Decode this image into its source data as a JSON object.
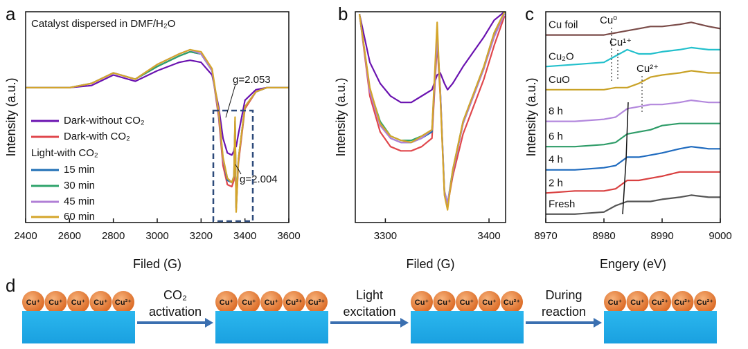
{
  "chart_data": [
    {
      "type": "line",
      "panel_label": "a",
      "x_label": "Filed (G)",
      "y_label": "Intensity (a.u.)",
      "x": [
        2400,
        2500,
        2600,
        2700,
        2800,
        2900,
        3000,
        3100,
        3150,
        3200,
        3250,
        3280,
        3300,
        3320,
        3340,
        3350,
        3355,
        3360,
        3370,
        3400,
        3450,
        3500,
        3600
      ],
      "xlim": [
        2400,
        3600
      ],
      "xticks": [
        2400,
        2600,
        2800,
        3000,
        3200,
        3400,
        3600
      ],
      "ylim": [
        0,
        100
      ],
      "legend": "lower left",
      "legend_header": "Light-with CO₂",
      "annotations": [
        "Catalyst dispersed in DMF/H₂O",
        "g=2.053",
        "g=2.004"
      ],
      "series": [
        {
          "name": "Dark-without CO₂",
          "color": "#6a12b0",
          "values": [
            64,
            64,
            64,
            65,
            70,
            67,
            72,
            76,
            77,
            76,
            70,
            55,
            40,
            33,
            32,
            34,
            38,
            36,
            42,
            58,
            63,
            64,
            64
          ]
        },
        {
          "name": "Dark-with CO₂",
          "color": "#e0474c",
          "values": [
            64,
            64,
            64,
            66,
            71,
            68,
            74,
            79,
            81,
            80,
            72,
            50,
            27,
            18,
            17,
            20,
            46,
            6,
            28,
            54,
            62,
            64,
            64
          ]
        },
        {
          "name": "15 min",
          "color": "#1f6fb5",
          "values": [
            64,
            64,
            64,
            66,
            71,
            68,
            74,
            79,
            81,
            80,
            72,
            52,
            30,
            20,
            19,
            22,
            47,
            7,
            30,
            55,
            62,
            64,
            64
          ]
        },
        {
          "name": "30 min",
          "color": "#2ea36b",
          "values": [
            64,
            64,
            64,
            66,
            71,
            68,
            74,
            79,
            81,
            80,
            72,
            52,
            30,
            21,
            19,
            22,
            48,
            7,
            30,
            55,
            62,
            64,
            64
          ]
        },
        {
          "name": "45 min",
          "color": "#b07fd6",
          "values": [
            64,
            64,
            64,
            66,
            71,
            68,
            75,
            80,
            82,
            80,
            72,
            52,
            30,
            21,
            19,
            22,
            48,
            7,
            30,
            55,
            62,
            64,
            64
          ]
        },
        {
          "name": "60 min",
          "color": "#d4a52a",
          "values": [
            64,
            64,
            64,
            66,
            71,
            68,
            75,
            80,
            82,
            81,
            73,
            53,
            31,
            21,
            19,
            22,
            50,
            5,
            30,
            55,
            62,
            64,
            64
          ]
        }
      ]
    },
    {
      "type": "line",
      "panel_label": "b",
      "x_label": "Filed (G)",
      "y_label": "Intensity (a.u.)",
      "x": [
        3275,
        3285,
        3295,
        3305,
        3315,
        3325,
        3335,
        3345,
        3350,
        3353,
        3357,
        3360,
        3365,
        3375,
        3385,
        3395,
        3405,
        3415
      ],
      "xlim": [
        3271,
        3416
      ],
      "xticks": [
        3300,
        3400
      ],
      "ylim": [
        0,
        100
      ],
      "series": [
        {
          "name": "Dark-without CO₂",
          "color": "#6a12b0",
          "values": [
            99,
            76,
            66,
            60,
            57,
            57,
            60,
            63,
            70,
            71,
            66,
            63,
            66,
            74,
            81,
            88,
            96,
            100
          ]
        },
        {
          "name": "Dark-with CO₂",
          "color": "#e0474c",
          "values": [
            99,
            60,
            43,
            36,
            34,
            34,
            36,
            40,
            85,
            60,
            14,
            8,
            22,
            42,
            55,
            68,
            84,
            98
          ]
        },
        {
          "name": "15 min",
          "color": "#1f6fb5",
          "values": [
            99,
            63,
            47,
            40,
            38,
            38,
            40,
            43,
            89,
            63,
            14,
            8,
            24,
            47,
            60,
            73,
            89,
            100
          ]
        },
        {
          "name": "30 min",
          "color": "#2ea36b",
          "values": [
            99,
            63,
            48,
            41,
            39,
            39,
            41,
            44,
            88,
            62,
            15,
            9,
            25,
            48,
            61,
            74,
            90,
            100
          ]
        },
        {
          "name": "45 min",
          "color": "#b07fd6",
          "values": [
            99,
            62,
            46,
            40,
            38,
            38,
            40,
            44,
            88,
            63,
            15,
            9,
            24,
            47,
            60,
            73,
            88,
            99
          ]
        },
        {
          "name": "60 min",
          "color": "#d4a52a",
          "values": [
            99,
            64,
            47,
            41,
            39,
            38,
            41,
            44,
            95,
            60,
            13,
            6,
            25,
            48,
            61,
            74,
            90,
            100
          ]
        }
      ]
    },
    {
      "type": "line",
      "panel_label": "c",
      "x_label": "Engery (eV)",
      "y_label": "Intensity (a.u.)",
      "x": [
        8970,
        8975,
        8980,
        8982,
        8984,
        8986,
        8988,
        8990,
        8993,
        8995,
        8998,
        9000
      ],
      "xlim": [
        8970,
        9000
      ],
      "xticks": [
        8970,
        8980,
        8990,
        9000
      ],
      "ylim": [
        0,
        100
      ],
      "legend": "inline",
      "annotations": [
        "Cu⁰",
        "Cu¹⁺",
        "Cu²⁺"
      ],
      "series": [
        {
          "name": "Cu foil",
          "color": "#7a4b48",
          "values": [
            89,
            89,
            89,
            90,
            91,
            92,
            93,
            93,
            94,
            95,
            93,
            92
          ]
        },
        {
          "name": "Cu₂O",
          "color": "#23c0cc",
          "values": [
            74,
            75,
            76,
            79,
            82,
            80,
            80,
            81,
            82,
            83,
            82,
            82
          ]
        },
        {
          "name": "CuO",
          "color": "#c9a227",
          "values": [
            63,
            63,
            63,
            64,
            64,
            66,
            69,
            70,
            71,
            72,
            71,
            71
          ]
        },
        {
          "name": "8 h",
          "color": "#b388dd",
          "values": [
            48,
            48,
            49,
            50,
            54,
            55,
            56,
            56,
            57,
            58,
            57,
            57
          ]
        },
        {
          "name": "6 h",
          "color": "#2e9c68",
          "values": [
            36,
            36,
            37,
            38,
            42,
            43,
            44,
            46,
            47,
            47,
            47,
            47
          ]
        },
        {
          "name": "4 h",
          "color": "#1f6bbf",
          "values": [
            25,
            25,
            26,
            27,
            31,
            31,
            32,
            33,
            35,
            36,
            35,
            35
          ]
        },
        {
          "name": "2 h",
          "color": "#d94040",
          "values": [
            14,
            15,
            15,
            16,
            20,
            20,
            21,
            22,
            24,
            24,
            24,
            24
          ]
        },
        {
          "name": "Fresh",
          "color": "#555555",
          "values": [
            4,
            4,
            5,
            8,
            10,
            10,
            10,
            11,
            12,
            13,
            12,
            12
          ]
        }
      ]
    }
  ],
  "diagram": {
    "panel_label": "d",
    "states": [
      [
        "Cu⁺",
        "Cu⁺",
        "Cu⁺",
        "Cu⁺",
        "Cu²⁺"
      ],
      [
        "Cu⁺",
        "Cu⁺",
        "Cu⁺",
        "Cu²⁺",
        "Cu²⁺"
      ],
      [
        "Cu⁺",
        "Cu⁺",
        "Cu⁺",
        "Cu⁺",
        "Cu²⁺"
      ],
      [
        "Cu⁺",
        "Cu⁺",
        "Cu²⁺",
        "Cu²⁺",
        "Cu²⁺"
      ]
    ],
    "arrows": [
      [
        "CO₂",
        "activation"
      ],
      [
        "Light",
        "excitation"
      ],
      [
        "During",
        "reaction"
      ]
    ]
  }
}
